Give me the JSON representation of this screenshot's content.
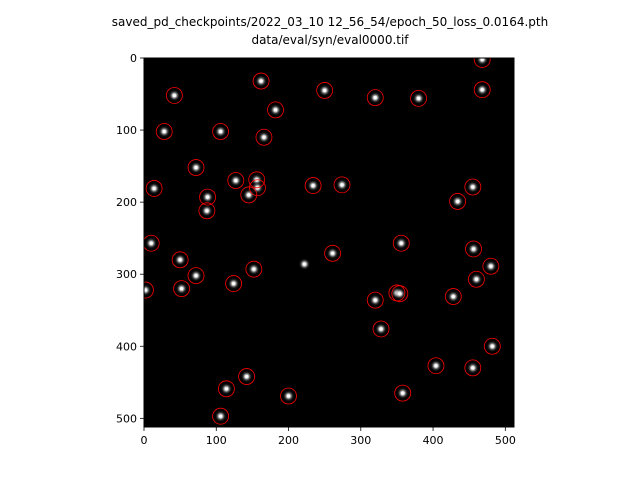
{
  "figure": {
    "title_line1": "saved_pd_checkpoints/2022_03_10 12_56_54/epoch_50_loss_0.0164.pth",
    "title_line2": "data/eval/syn/eval0000.tif"
  },
  "colors": {
    "background": "#000000",
    "marker": "#ff0000",
    "spot": "#ffffff"
  },
  "chart_data": {
    "type": "scatter",
    "title": "saved_pd_checkpoints/2022_03_10 12_56_54/epoch_50_loss_0.0164.pth\ndata/eval/syn/eval0000.tif",
    "xlabel": "",
    "ylabel": "",
    "xlim": [
      0,
      512
    ],
    "ylim": [
      512,
      0
    ],
    "y_axis_inverted": true,
    "x_ticks": [
      0,
      100,
      200,
      300,
      400,
      500
    ],
    "y_ticks": [
      0,
      100,
      200,
      300,
      400,
      500
    ],
    "grid": false,
    "background_image": "grayscale microscopy image with bright spots on black",
    "marker": "open red circle",
    "points": [
      {
        "x": 468,
        "y": 2
      },
      {
        "x": 162,
        "y": 32
      },
      {
        "x": 250,
        "y": 45
      },
      {
        "x": 468,
        "y": 44
      },
      {
        "x": 42,
        "y": 52
      },
      {
        "x": 320,
        "y": 55
      },
      {
        "x": 380,
        "y": 56
      },
      {
        "x": 182,
        "y": 72
      },
      {
        "x": 28,
        "y": 102
      },
      {
        "x": 106,
        "y": 102
      },
      {
        "x": 166,
        "y": 110
      },
      {
        "x": 72,
        "y": 152
      },
      {
        "x": 127,
        "y": 170
      },
      {
        "x": 156,
        "y": 169
      },
      {
        "x": 14,
        "y": 181
      },
      {
        "x": 234,
        "y": 177
      },
      {
        "x": 274,
        "y": 176
      },
      {
        "x": 455,
        "y": 179
      },
      {
        "x": 157,
        "y": 180
      },
      {
        "x": 145,
        "y": 190
      },
      {
        "x": 88,
        "y": 193
      },
      {
        "x": 434,
        "y": 199
      },
      {
        "x": 87,
        "y": 212
      },
      {
        "x": 10,
        "y": 257
      },
      {
        "x": 356,
        "y": 257
      },
      {
        "x": 456,
        "y": 265
      },
      {
        "x": 261,
        "y": 271
      },
      {
        "x": 50,
        "y": 280
      },
      {
        "x": 480,
        "y": 289
      },
      {
        "x": 152,
        "y": 293
      },
      {
        "x": 72,
        "y": 302
      },
      {
        "x": 460,
        "y": 307
      },
      {
        "x": 124,
        "y": 313
      },
      {
        "x": 52,
        "y": 320
      },
      {
        "x": 2,
        "y": 322
      },
      {
        "x": 350,
        "y": 326
      },
      {
        "x": 354,
        "y": 327
      },
      {
        "x": 428,
        "y": 331
      },
      {
        "x": 320,
        "y": 336
      },
      {
        "x": 328,
        "y": 376
      },
      {
        "x": 482,
        "y": 400
      },
      {
        "x": 404,
        "y": 427
      },
      {
        "x": 455,
        "y": 430
      },
      {
        "x": 142,
        "y": 442
      },
      {
        "x": 114,
        "y": 459
      },
      {
        "x": 358,
        "y": 465
      },
      {
        "x": 200,
        "y": 469
      },
      {
        "x": 106,
        "y": 497
      }
    ],
    "unmarked_spots": [
      {
        "x": 222,
        "y": 286
      }
    ]
  }
}
